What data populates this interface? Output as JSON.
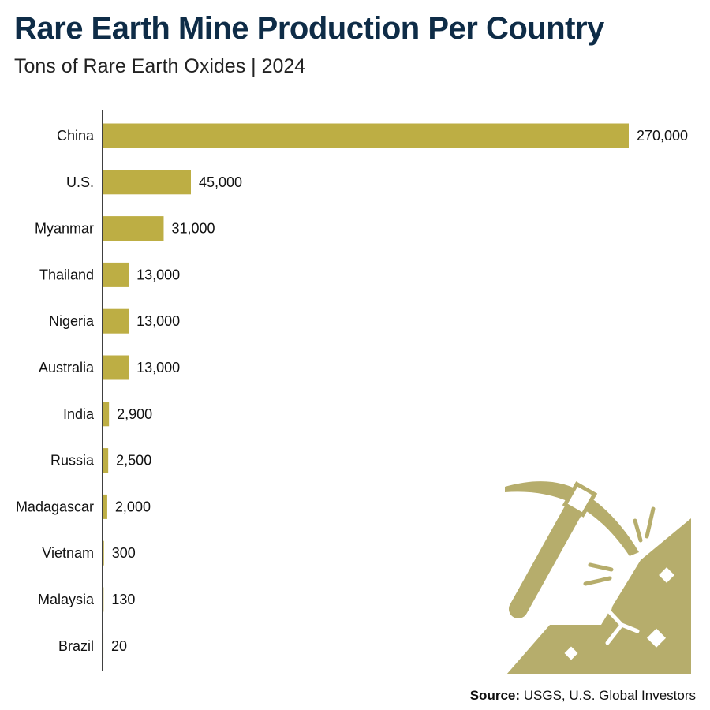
{
  "title": "Rare Earth Mine Production Per Country",
  "subtitle": "Tons of Rare Earth Oxides | 2024",
  "source_label": "Source:",
  "source_text": "USGS, U.S. Global Investors",
  "colors": {
    "bar": "#bdae44",
    "title": "#0e2c47",
    "illustration": "#b6ad6c"
  },
  "illustration_icon": "pickaxe-rock-icon",
  "chart_data": {
    "type": "bar",
    "orientation": "horizontal",
    "categories": [
      "China",
      "U.S.",
      "Myanmar",
      "Thailand",
      "Nigeria",
      "Australia",
      "India",
      "Russia",
      "Madagascar",
      "Vietnam",
      "Malaysia",
      "Brazil"
    ],
    "values": [
      270000,
      45000,
      31000,
      13000,
      13000,
      13000,
      2900,
      2500,
      2000,
      300,
      130,
      20
    ],
    "value_labels": [
      "270,000",
      "45,000",
      "31,000",
      "13,000",
      "13,000",
      "13,000",
      "2,900",
      "2,500",
      "2,000",
      "300",
      "130",
      "20"
    ],
    "xlim": [
      0,
      270000
    ],
    "grid": false,
    "legend": "none"
  }
}
